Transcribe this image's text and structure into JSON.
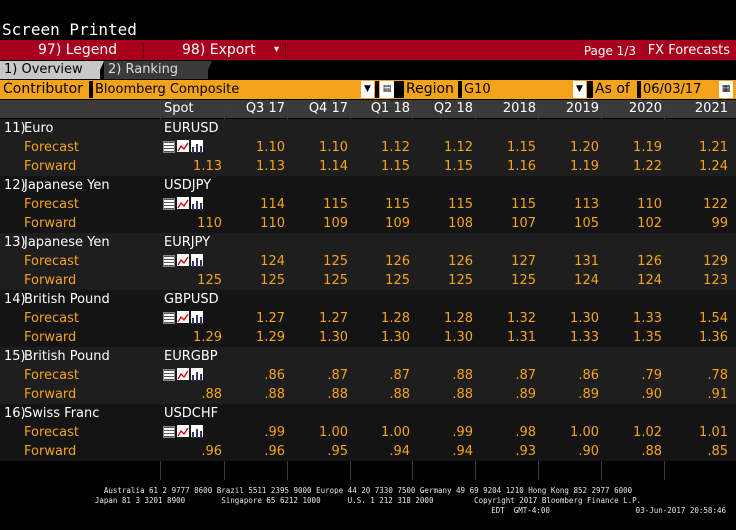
{
  "window": {
    "title": "Screen Printed"
  },
  "menu": {
    "legend_label": "97) Legend",
    "export_label": "98) Export",
    "page_indicator": "Page 1/3",
    "screen_name": "FX Forecasts"
  },
  "tabs": [
    {
      "label": "1) Overview",
      "active": true
    },
    {
      "label": "2) Ranking",
      "active": false
    }
  ],
  "filters": {
    "contributor_label": "Contributor",
    "contributor_value": "Bloomberg Composite",
    "region_label": "Region",
    "region_value": "G10",
    "asof_label": "As of",
    "asof_value": "06/03/17"
  },
  "columns": [
    "Spot",
    "Q3 17",
    "Q4 17",
    "Q1 18",
    "Q2 18",
    "2018",
    "2019",
    "2020",
    "2021"
  ],
  "rows": [
    {
      "num": "11)",
      "name": "Euro",
      "ticker": "EURUSD",
      "forecast_label": "Forecast",
      "forward_label": "Forward",
      "spot_forward": "1.13",
      "forecast": [
        "1.10",
        "1.10",
        "1.12",
        "1.12",
        "1.15",
        "1.20",
        "1.19",
        "1.21"
      ],
      "forward": [
        "1.13",
        "1.14",
        "1.15",
        "1.15",
        "1.16",
        "1.19",
        "1.22",
        "1.24"
      ]
    },
    {
      "num": "12)",
      "name": "Japanese Yen",
      "ticker": "USDJPY",
      "forecast_label": "Forecast",
      "forward_label": "Forward",
      "spot_forward": "110",
      "forecast": [
        "114",
        "115",
        "115",
        "115",
        "115",
        "113",
        "110",
        "122"
      ],
      "forward": [
        "110",
        "109",
        "109",
        "108",
        "107",
        "105",
        "102",
        "99"
      ]
    },
    {
      "num": "13)",
      "name": "Japanese Yen",
      "ticker": "EURJPY",
      "forecast_label": "Forecast",
      "forward_label": "Forward",
      "spot_forward": "125",
      "forecast": [
        "124",
        "125",
        "126",
        "126",
        "127",
        "131",
        "126",
        "129"
      ],
      "forward": [
        "125",
        "125",
        "125",
        "125",
        "125",
        "124",
        "124",
        "123"
      ]
    },
    {
      "num": "14)",
      "name": "British Pound",
      "ticker": "GBPUSD",
      "forecast_label": "Forecast",
      "forward_label": "Forward",
      "spot_forward": "1.29",
      "forecast": [
        "1.27",
        "1.27",
        "1.28",
        "1.28",
        "1.32",
        "1.30",
        "1.33",
        "1.54"
      ],
      "forward": [
        "1.29",
        "1.30",
        "1.30",
        "1.30",
        "1.31",
        "1.33",
        "1.35",
        "1.36"
      ]
    },
    {
      "num": "15)",
      "name": "British Pound",
      "ticker": "EURGBP",
      "forecast_label": "Forecast",
      "forward_label": "Forward",
      "spot_forward": ".88",
      "forecast": [
        ".86",
        ".87",
        ".87",
        ".88",
        ".87",
        ".86",
        ".79",
        ".78"
      ],
      "forward": [
        ".88",
        ".88",
        ".88",
        ".88",
        ".89",
        ".89",
        ".90",
        ".91"
      ]
    },
    {
      "num": "16)",
      "name": "Swiss Franc",
      "ticker": "USDCHF",
      "forecast_label": "Forecast",
      "forward_label": "Forward",
      "spot_forward": ".96",
      "forecast": [
        ".99",
        "1.00",
        "1.00",
        ".99",
        ".98",
        "1.00",
        "1.02",
        "1.01"
      ],
      "forward": [
        ".96",
        ".95",
        ".94",
        ".94",
        ".93",
        ".90",
        ".88",
        ".85"
      ]
    }
  ],
  "footer": {
    "line1": "Australia 61 2 9777 8600 Brazil 5511 2395 9000 Europe 44 20 7330 7500 Germany 49 69 9204 1210 Hong Kong 852 2977 6000",
    "line2": "Japan 81 3 3201 8900        Singapore 65 6212 1000      U.S. 1 212 318 2000         Copyright 2017 Bloomberg Finance L.P.",
    "line3": "EDT  GMT-4:00                   03-Jun-2017 20:58:46"
  },
  "colors": {
    "accent_red": "#a8001c",
    "orange": "#f5a31a",
    "forecast_text": "#f5a31a",
    "grid_bg": "#000000"
  },
  "icons": [
    "table-icon",
    "line-chart-icon",
    "bar-chart-icon"
  ]
}
